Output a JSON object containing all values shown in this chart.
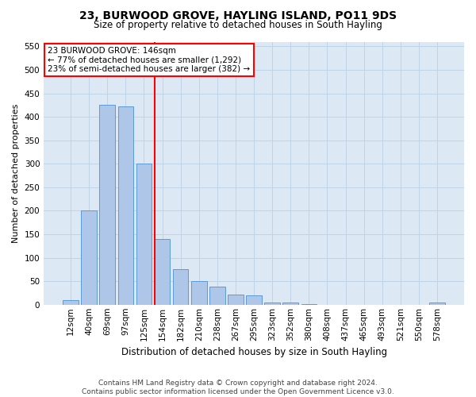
{
  "title": "23, BURWOOD GROVE, HAYLING ISLAND, PO11 9DS",
  "subtitle": "Size of property relative to detached houses in South Hayling",
  "xlabel": "Distribution of detached houses by size in South Hayling",
  "ylabel": "Number of detached properties",
  "footer1": "Contains HM Land Registry data © Crown copyright and database right 2024.",
  "footer2": "Contains public sector information licensed under the Open Government Licence v3.0.",
  "categories": [
    "12sqm",
    "40sqm",
    "69sqm",
    "97sqm",
    "125sqm",
    "154sqm",
    "182sqm",
    "210sqm",
    "238sqm",
    "267sqm",
    "295sqm",
    "323sqm",
    "352sqm",
    "380sqm",
    "408sqm",
    "437sqm",
    "465sqm",
    "493sqm",
    "521sqm",
    "550sqm",
    "578sqm"
  ],
  "values": [
    10,
    200,
    425,
    422,
    300,
    140,
    75,
    50,
    38,
    22,
    20,
    5,
    5,
    2,
    0,
    0,
    0,
    0,
    0,
    0,
    5
  ],
  "bar_color": "#aec6e8",
  "bar_edge_color": "#5b9bd5",
  "grid_color": "#c0d4e8",
  "background_color": "#dce9f5",
  "red_line_x": 4.57,
  "annotation_text1": "23 BURWOOD GROVE: 146sqm",
  "annotation_text2": "← 77% of detached houses are smaller (1,292)",
  "annotation_text3": "23% of semi-detached houses are larger (382) →",
  "ylim": [
    0,
    560
  ],
  "yticks": [
    0,
    50,
    100,
    150,
    200,
    250,
    300,
    350,
    400,
    450,
    500,
    550
  ],
  "title_fontsize": 10,
  "subtitle_fontsize": 8.5,
  "xlabel_fontsize": 8.5,
  "ylabel_fontsize": 8,
  "tick_fontsize": 7.5,
  "annot_fontsize": 7.5,
  "footer_fontsize": 6.5
}
